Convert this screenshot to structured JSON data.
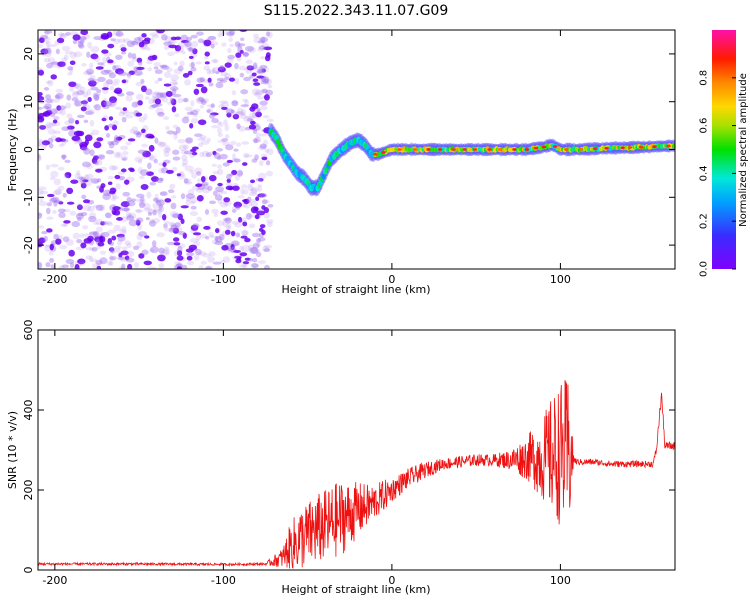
{
  "title": "S115.2022.343.11.07.G09",
  "colors": {
    "snr_line": "#ee1111",
    "noise": "#8a2be2",
    "frame": "#000000"
  },
  "chart_data": [
    {
      "type": "heatmap",
      "name": "spectrogram",
      "xlabel": "Height of straight line (km)",
      "ylabel": "Frequency (Hz)",
      "xlim": [
        -210,
        168
      ],
      "ylim": [
        -25,
        25
      ],
      "xticks": [
        -200,
        -100,
        0,
        100
      ],
      "xtick_labels": [
        "-200",
        "-100",
        "0",
        "100"
      ],
      "yticks": [
        -20,
        -10,
        0,
        10,
        20
      ],
      "ytick_labels": [
        "-20",
        "-10",
        "0",
        "10",
        "20"
      ],
      "colorbar": {
        "label": "Normalized spectral amplitude",
        "range": [
          0,
          1
        ],
        "ticks": [
          0.0,
          0.2,
          0.4,
          0.6,
          0.8
        ],
        "tick_labels": [
          "0.0",
          "0.2",
          "0.4",
          "0.6",
          "0.8"
        ],
        "colormap": "rainbow (purple-blue-cyan-green-yellow-red-magenta)"
      },
      "noise_region_x": [
        -210,
        -72
      ],
      "signal_track": {
        "x": [
          -72,
          -68,
          -64,
          -60,
          -56,
          -52,
          -48,
          -44,
          -40,
          -36,
          -30,
          -24,
          -20,
          -16,
          -12,
          -8,
          -4,
          0,
          20,
          40,
          60,
          80,
          90,
          95,
          100,
          105,
          110,
          130,
          150,
          168
        ],
        "freq_hz": [
          4,
          2,
          -1,
          -3,
          -5,
          -6,
          -8,
          -8,
          -5,
          -2,
          0,
          1.5,
          2,
          1,
          -1,
          -1,
          -0.5,
          0,
          0,
          0,
          0,
          0,
          0.5,
          1,
          0,
          0,
          0,
          0.3,
          0.5,
          0.8
        ]
      },
      "grid": false
    },
    {
      "type": "line",
      "name": "snr",
      "xlabel": "Height of straight line (km)",
      "ylabel": "SNR (10 * v/v)",
      "xlim": [
        -210,
        168
      ],
      "ylim": [
        0,
        600
      ],
      "xticks": [
        -200,
        -100,
        0,
        100
      ],
      "xtick_labels": [
        "-200",
        "-100",
        "0",
        "100"
      ],
      "yticks": [
        0,
        200,
        400,
        600
      ],
      "ytick_labels": [
        "0",
        "200",
        "400",
        "600"
      ],
      "x": [
        -210,
        -150,
        -100,
        -75,
        -65,
        -60,
        -55,
        -50,
        -45,
        -40,
        -35,
        -30,
        -25,
        -20,
        -15,
        -10,
        -5,
        0,
        10,
        20,
        30,
        40,
        50,
        60,
        70,
        80,
        90,
        95,
        100,
        105,
        108,
        110,
        120,
        130,
        140,
        155,
        157,
        160,
        162,
        168
      ],
      "y": [
        15,
        15,
        14,
        15,
        30,
        60,
        75,
        90,
        100,
        110,
        120,
        130,
        140,
        150,
        160,
        170,
        185,
        200,
        230,
        250,
        265,
        270,
        275,
        275,
        275,
        280,
        280,
        285,
        290,
        285,
        275,
        270,
        270,
        265,
        265,
        265,
        300,
        440,
        310,
        310
      ],
      "envelope_amp": [
        3,
        3,
        3,
        3,
        25,
        60,
        80,
        80,
        90,
        90,
        95,
        95,
        80,
        70,
        55,
        45,
        40,
        30,
        25,
        20,
        15,
        15,
        15,
        15,
        25,
        55,
        110,
        150,
        180,
        200,
        10,
        8,
        8,
        8,
        8,
        8,
        10,
        15,
        10,
        10
      ],
      "grid": false
    }
  ]
}
